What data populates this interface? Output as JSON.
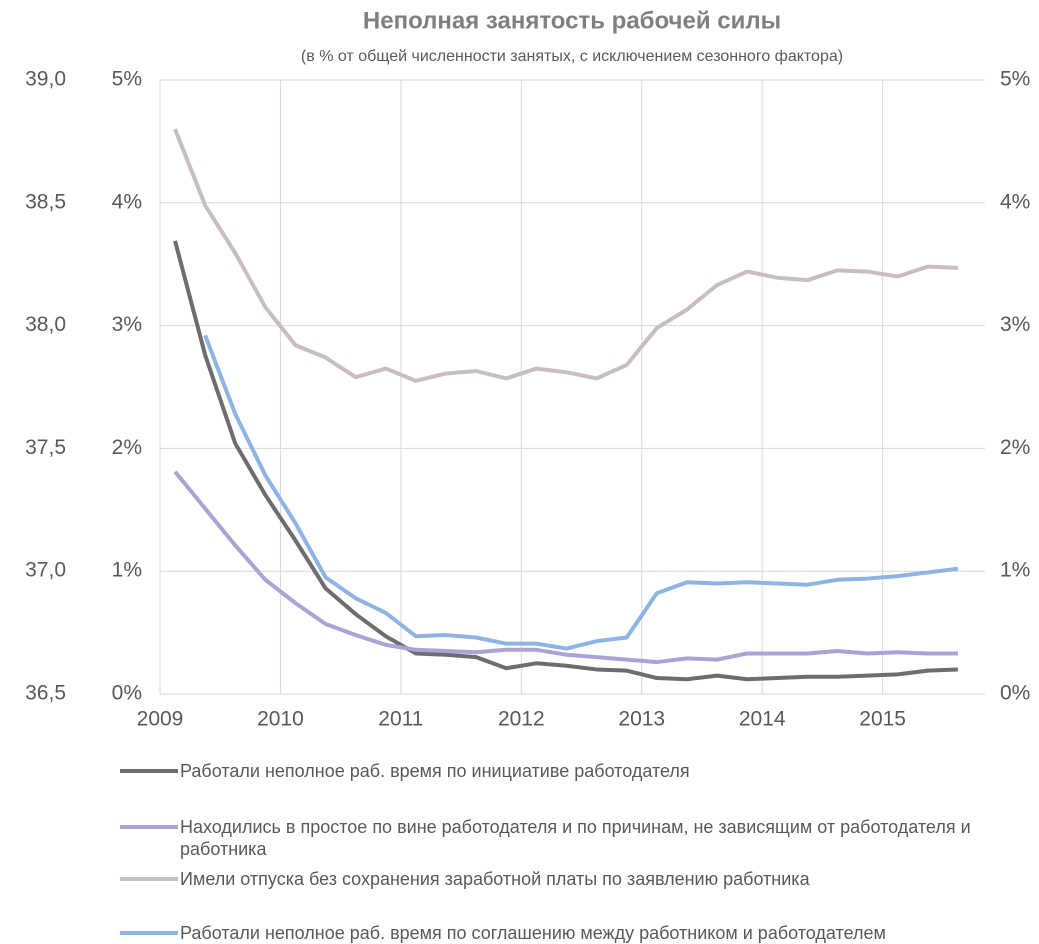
{
  "chart_data": {
    "type": "line",
    "title": "Неполная занятость рабочей силы",
    "subtitle": "(в % от общей численности занятых, с исключением сезонного фактора)",
    "x": [
      2009.125,
      2009.375,
      2009.625,
      2009.875,
      2010.125,
      2010.375,
      2010.625,
      2010.875,
      2011.125,
      2011.375,
      2011.625,
      2011.875,
      2012.125,
      2012.375,
      2012.625,
      2012.875,
      2013.125,
      2013.375,
      2013.625,
      2013.875,
      2014.125,
      2014.375,
      2014.625,
      2014.875,
      2015.125,
      2015.375,
      2015.625
    ],
    "xlim": [
      2009,
      2015.85
    ],
    "xticks": [
      2009,
      2010,
      2011,
      2012,
      2013,
      2014,
      2015
    ],
    "ylim": [
      0,
      5
    ],
    "yticks": [
      {
        "value": 0,
        "label": "0%"
      },
      {
        "value": 1,
        "label": "1%"
      },
      {
        "value": 2,
        "label": "2%"
      },
      {
        "value": 3,
        "label": "3%"
      },
      {
        "value": 4,
        "label": "4%"
      },
      {
        "value": 5,
        "label": "5%"
      }
    ],
    "y2lim": [
      0,
      5
    ],
    "y2ticks": [
      {
        "value": 0,
        "label": "0%"
      },
      {
        "value": 1,
        "label": "1%"
      },
      {
        "value": 2,
        "label": "2%"
      },
      {
        "value": 3,
        "label": "3%"
      },
      {
        "value": 4,
        "label": "4%"
      },
      {
        "value": 5,
        "label": "5%"
      }
    ],
    "y3lim": [
      36.5,
      39.0
    ],
    "y3ticks": [
      {
        "value": 36.5,
        "label": "36,5"
      },
      {
        "value": 37.0,
        "label": "37,0"
      },
      {
        "value": 37.5,
        "label": "37,5"
      },
      {
        "value": 38.0,
        "label": "38,0"
      },
      {
        "value": 38.5,
        "label": "38,5"
      },
      {
        "value": 39.0,
        "label": "39,0"
      }
    ],
    "grid": true,
    "legend": "bottom",
    "series": [
      {
        "name": "Работали неполное раб. время по инициативе работодателя",
        "color": "#6d6d6d",
        "values": [
          3.69,
          2.76,
          2.04,
          1.62,
          1.25,
          0.86,
          0.65,
          0.47,
          0.33,
          0.32,
          0.3,
          0.21,
          0.25,
          0.23,
          0.2,
          0.19,
          0.13,
          0.12,
          0.15,
          0.12,
          0.13,
          0.14,
          0.14,
          0.15,
          0.16,
          0.19,
          0.2
        ]
      },
      {
        "name": "Находились в простое по вине работодателя и по причинам, не зависящим от работодателя и работника",
        "color": "#a9a3d6",
        "values": [
          1.81,
          1.51,
          1.21,
          0.93,
          0.74,
          0.57,
          0.48,
          0.4,
          0.36,
          0.35,
          0.34,
          0.36,
          0.36,
          0.32,
          0.3,
          0.28,
          0.26,
          0.29,
          0.28,
          0.33,
          0.33,
          0.33,
          0.35,
          0.33,
          0.34,
          0.33,
          0.33
        ]
      },
      {
        "name": "Имели отпуска без сохранения заработной платы по заявлению работника",
        "color": "#c9bdc0",
        "values": [
          4.6,
          3.98,
          3.59,
          3.15,
          2.84,
          2.74,
          2.58,
          2.65,
          2.55,
          2.61,
          2.63,
          2.57,
          2.65,
          2.62,
          2.57,
          2.68,
          2.98,
          3.13,
          3.33,
          3.44,
          3.39,
          3.37,
          3.45,
          3.44,
          3.4,
          3.48,
          3.47
        ]
      },
      {
        "name": "Работали неполное раб. время по соглашению между работником и работодателем",
        "color": "#8db4e2",
        "values": [
          null,
          2.92,
          2.28,
          1.78,
          1.39,
          0.95,
          0.78,
          0.66,
          0.47,
          0.48,
          0.46,
          0.41,
          0.41,
          0.37,
          0.43,
          0.46,
          0.82,
          0.91,
          0.9,
          0.91,
          0.9,
          0.89,
          0.93,
          0.94,
          0.96,
          0.99,
          1.02
        ]
      }
    ]
  }
}
